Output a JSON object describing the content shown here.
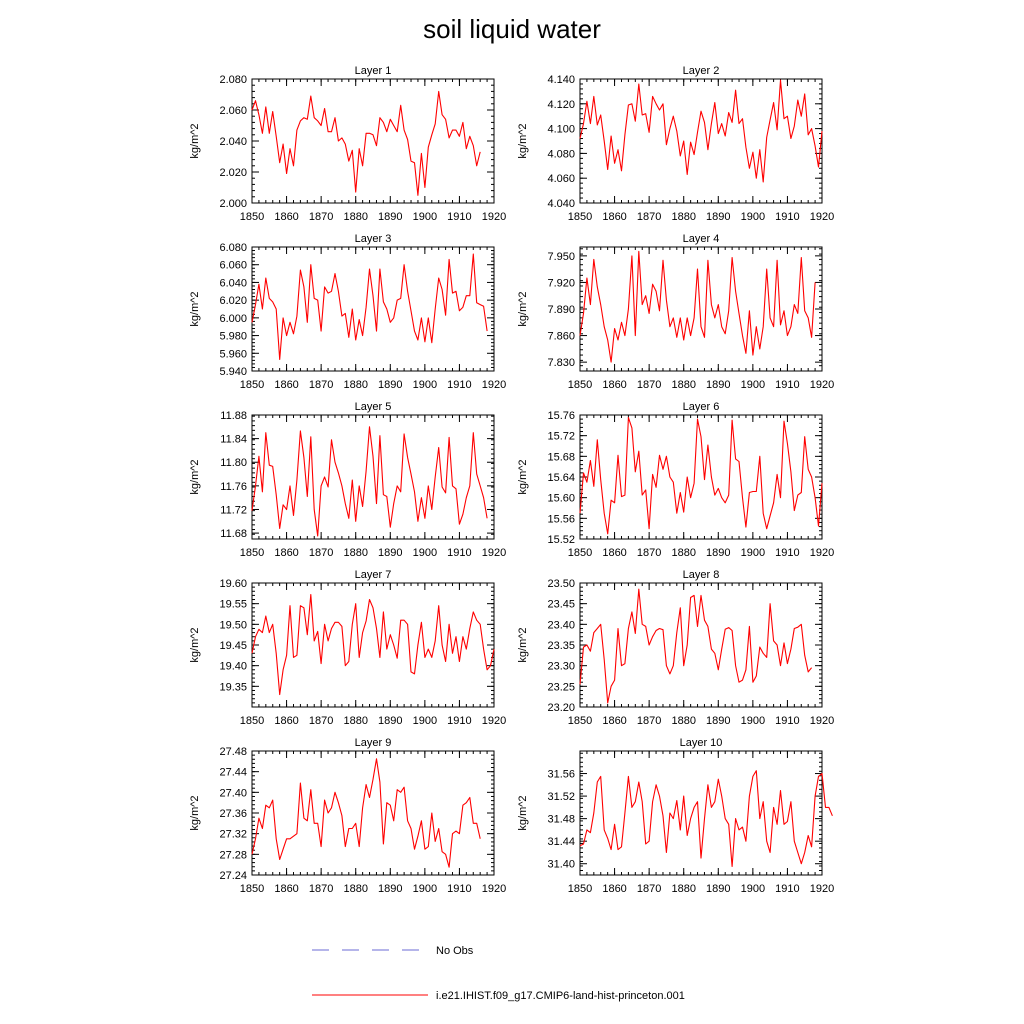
{
  "figure": {
    "title": "soil liquid water",
    "legend": {
      "placement": "bottom-center",
      "entries": [
        {
          "label": "No Obs",
          "color": "#6b6bd6",
          "dashed": true
        },
        {
          "label": "i.e21.IHIST.f09_g17.CMIP6-land-hist-princeton.001",
          "color": "#ff0000",
          "dashed": false
        }
      ]
    }
  },
  "chart_data": [
    {
      "type": "line",
      "title": "Layer 1",
      "ylabel": "kg/m^2",
      "xlim": [
        1850,
        1920
      ],
      "xticks": [
        "1850",
        "1860",
        "1870",
        "1880",
        "1890",
        "1900",
        "1910",
        "1920"
      ],
      "ylim": [
        2.0,
        2.08
      ],
      "yticks": [
        "2.000",
        "2.020",
        "2.040",
        "2.060",
        "2.080"
      ],
      "x_start": 1850,
      "x_step": 1,
      "series": [
        {
          "color": "#ff0000",
          "values": [
            2.06,
            2.066,
            2.057,
            2.045,
            2.062,
            2.045,
            2.059,
            2.043,
            2.026,
            2.038,
            2.019,
            2.035,
            2.024,
            2.047,
            2.053,
            2.055,
            2.054,
            2.069,
            2.055,
            2.053,
            2.05,
            2.061,
            2.046,
            2.046,
            2.055,
            2.04,
            2.042,
            2.038,
            2.027,
            2.034,
            2.007,
            2.035,
            2.024,
            2.045,
            2.045,
            2.044,
            2.037,
            2.055,
            2.052,
            2.046,
            2.054,
            2.05,
            2.046,
            2.063,
            2.047,
            2.041,
            2.027,
            2.026,
            2.005,
            2.032,
            2.01,
            2.036,
            2.044,
            2.051,
            2.072,
            2.057,
            2.054,
            2.042,
            2.047,
            2.047,
            2.043,
            2.052,
            2.035,
            2.043,
            2.037,
            2.024,
            2.033
          ]
        }
      ]
    },
    {
      "type": "line",
      "title": "Layer 2",
      "ylabel": "kg/m^2",
      "xlim": [
        1850,
        1920
      ],
      "xticks": [
        "1850",
        "1860",
        "1870",
        "1880",
        "1890",
        "1900",
        "1910",
        "1920"
      ],
      "ylim": [
        4.04,
        4.14
      ],
      "yticks": [
        "4.040",
        "4.060",
        "4.080",
        "4.100",
        "4.120",
        "4.140"
      ],
      "x_start": 1850,
      "x_step": 1,
      "series": [
        {
          "color": "#ff0000",
          "values": [
            4.092,
            4.104,
            4.122,
            4.104,
            4.126,
            4.103,
            4.111,
            4.09,
            4.067,
            4.094,
            4.072,
            4.083,
            4.066,
            4.095,
            4.119,
            4.12,
            4.106,
            4.136,
            4.111,
            4.112,
            4.097,
            4.126,
            4.12,
            4.115,
            4.12,
            4.087,
            4.1,
            4.11,
            4.098,
            4.078,
            4.09,
            4.063,
            4.089,
            4.079,
            4.097,
            4.114,
            4.105,
            4.083,
            4.104,
            4.121,
            4.096,
            4.104,
            4.094,
            4.113,
            4.105,
            4.131,
            4.104,
            4.108,
            4.085,
            4.068,
            4.081,
            4.06,
            4.083,
            4.057,
            4.093,
            4.107,
            4.121,
            4.099,
            4.139,
            4.108,
            4.11,
            4.092,
            4.102,
            4.123,
            4.11,
            4.128,
            4.095,
            4.1,
            4.086,
            4.069,
            4.098
          ]
        }
      ]
    },
    {
      "type": "line",
      "title": "Layer 3",
      "ylabel": "kg/m^2",
      "xlim": [
        1850,
        1920
      ],
      "xticks": [
        "1850",
        "1860",
        "1870",
        "1880",
        "1890",
        "1900",
        "1910",
        "1920"
      ],
      "ylim": [
        5.94,
        6.08
      ],
      "yticks": [
        "5.940",
        "5.960",
        "5.980",
        "6.000",
        "6.020",
        "6.040",
        "6.060",
        "6.080"
      ],
      "x_start": 1850,
      "x_step": 1,
      "series": [
        {
          "color": "#ff0000",
          "values": [
            5.995,
            6.015,
            6.038,
            6.01,
            6.045,
            6.022,
            6.018,
            6.01,
            5.953,
            6.0,
            5.98,
            5.995,
            5.982,
            6.002,
            6.054,
            6.035,
            5.995,
            6.06,
            6.022,
            6.02,
            5.985,
            6.035,
            6.028,
            6.03,
            6.05,
            6.03,
            6.002,
            6.005,
            5.978,
            6.01,
            5.975,
            5.998,
            5.98,
            6.012,
            6.055,
            6.025,
            5.985,
            6.055,
            6.018,
            6.01,
            5.995,
            6.0,
            6.02,
            6.022,
            6.06,
            6.03,
            6.008,
            5.985,
            5.975,
            6.0,
            5.973,
            6.0,
            5.972,
            6.01,
            6.045,
            6.032,
            6.003,
            6.066,
            6.028,
            6.03,
            6.008,
            6.012,
            6.025,
            6.025,
            6.072,
            6.017,
            6.015,
            6.013,
            5.985
          ]
        }
      ]
    },
    {
      "type": "line",
      "title": "Layer 4",
      "ylabel": "kg/m^2",
      "xlim": [
        1850,
        1920
      ],
      "xticks": [
        "1850",
        "1860",
        "1870",
        "1880",
        "1890",
        "1900",
        "1910",
        "1920"
      ],
      "ylim": [
        7.82,
        7.96
      ],
      "yticks": [
        "7.830",
        "7.860",
        "7.890",
        "7.920",
        "7.950"
      ],
      "x_start": 1850,
      "x_step": 1,
      "series": [
        {
          "color": "#ff0000",
          "values": [
            7.86,
            7.885,
            7.925,
            7.895,
            7.946,
            7.915,
            7.895,
            7.87,
            7.855,
            7.83,
            7.868,
            7.855,
            7.875,
            7.86,
            7.89,
            7.95,
            7.86,
            7.955,
            7.895,
            7.905,
            7.885,
            7.918,
            7.91,
            7.888,
            7.945,
            7.9,
            7.87,
            7.88,
            7.858,
            7.88,
            7.855,
            7.88,
            7.86,
            7.88,
            7.935,
            7.87,
            7.858,
            7.945,
            7.895,
            7.88,
            7.895,
            7.87,
            7.862,
            7.888,
            7.948,
            7.91,
            7.885,
            7.86,
            7.84,
            7.888,
            7.838,
            7.87,
            7.845,
            7.87,
            7.935,
            7.88,
            7.87,
            7.945,
            7.872,
            7.888,
            7.86,
            7.87,
            7.895,
            7.885,
            7.948,
            7.888,
            7.88,
            7.858,
            7.92
          ]
        }
      ]
    },
    {
      "type": "line",
      "title": "Layer 5",
      "ylabel": "kg/m^2",
      "xlim": [
        1850,
        1920
      ],
      "xticks": [
        "1850",
        "1860",
        "1870",
        "1880",
        "1890",
        "1900",
        "1910",
        "1920"
      ],
      "ylim": [
        11.67,
        11.88
      ],
      "yticks": [
        "11.68",
        "11.72",
        "11.76",
        "11.80",
        "11.84",
        "11.88"
      ],
      "x_start": 1850,
      "x_step": 1,
      "series": [
        {
          "color": "#ff0000",
          "values": [
            11.718,
            11.76,
            11.81,
            11.75,
            11.85,
            11.795,
            11.793,
            11.745,
            11.688,
            11.728,
            11.72,
            11.76,
            11.71,
            11.77,
            11.853,
            11.808,
            11.742,
            11.843,
            11.72,
            11.675,
            11.76,
            11.775,
            11.758,
            11.838,
            11.8,
            11.782,
            11.76,
            11.73,
            11.705,
            11.77,
            11.7,
            11.76,
            11.725,
            11.785,
            11.86,
            11.81,
            11.73,
            11.845,
            11.745,
            11.742,
            11.69,
            11.73,
            11.76,
            11.75,
            11.848,
            11.808,
            11.78,
            11.75,
            11.7,
            11.74,
            11.705,
            11.76,
            11.72,
            11.775,
            11.825,
            11.758,
            11.748,
            11.842,
            11.76,
            11.755,
            11.695,
            11.712,
            11.74,
            11.76,
            11.85,
            11.78,
            11.76,
            11.74,
            11.705
          ]
        }
      ]
    },
    {
      "type": "line",
      "title": "Layer 6",
      "ylabel": "kg/m^2",
      "xlim": [
        1850,
        1920
      ],
      "xticks": [
        "1850",
        "1860",
        "1870",
        "1880",
        "1890",
        "1900",
        "1910",
        "1920"
      ],
      "ylim": [
        15.52,
        15.76
      ],
      "yticks": [
        "15.52",
        "15.56",
        "15.60",
        "15.64",
        "15.68",
        "15.72",
        "15.76"
      ],
      "x_start": 1850,
      "x_step": 1,
      "series": [
        {
          "color": "#ff0000",
          "values": [
            15.57,
            15.648,
            15.63,
            15.672,
            15.622,
            15.712,
            15.635,
            15.57,
            15.53,
            15.595,
            15.59,
            15.682,
            15.602,
            15.605,
            15.755,
            15.735,
            15.65,
            15.69,
            15.605,
            15.615,
            15.54,
            15.645,
            15.62,
            15.682,
            15.655,
            15.68,
            15.64,
            15.63,
            15.57,
            15.61,
            15.572,
            15.64,
            15.6,
            15.628,
            15.752,
            15.718,
            15.635,
            15.702,
            15.64,
            15.605,
            15.618,
            15.6,
            15.59,
            15.605,
            15.75,
            15.675,
            15.67,
            15.6,
            15.543,
            15.61,
            15.612,
            15.612,
            15.68,
            15.57,
            15.54,
            15.565,
            15.59,
            15.645,
            15.6,
            15.748,
            15.705,
            15.65,
            15.575,
            15.605,
            15.61,
            15.718,
            15.655,
            15.64,
            15.6,
            15.545,
            15.628
          ]
        }
      ]
    },
    {
      "type": "line",
      "title": "Layer 7",
      "ylabel": "kg/m^2",
      "xlim": [
        1850,
        1920
      ],
      "xticks": [
        "1850",
        "1860",
        "1870",
        "1880",
        "1890",
        "1900",
        "1910",
        "1920"
      ],
      "ylim": [
        19.3,
        19.6
      ],
      "yticks": [
        "19.35",
        "19.40",
        "19.45",
        "19.50",
        "19.55",
        "19.60"
      ],
      "x_start": 1850,
      "x_step": 1,
      "series": [
        {
          "color": "#ff0000",
          "values": [
            19.43,
            19.47,
            19.488,
            19.48,
            19.52,
            19.48,
            19.5,
            19.43,
            19.33,
            19.39,
            19.425,
            19.545,
            19.42,
            19.425,
            19.545,
            19.54,
            19.475,
            19.572,
            19.46,
            19.483,
            19.405,
            19.5,
            19.46,
            19.49,
            19.505,
            19.505,
            19.495,
            19.4,
            19.41,
            19.5,
            19.55,
            19.42,
            19.48,
            19.508,
            19.56,
            19.54,
            19.49,
            19.42,
            19.53,
            19.44,
            19.475,
            19.45,
            19.418,
            19.51,
            19.51,
            19.5,
            19.385,
            19.38,
            19.45,
            19.505,
            19.42,
            19.44,
            19.42,
            19.46,
            19.545,
            19.45,
            19.41,
            19.5,
            19.43,
            19.47,
            19.41,
            19.47,
            19.44,
            19.49,
            19.53,
            19.51,
            19.5,
            19.44,
            19.39,
            19.4,
            19.44
          ]
        }
      ]
    },
    {
      "type": "line",
      "title": "Layer 8",
      "ylabel": "kg/m^2",
      "xlim": [
        1850,
        1920
      ],
      "xticks": [
        "1850",
        "1860",
        "1870",
        "1880",
        "1890",
        "1900",
        "1910",
        "1920"
      ],
      "ylim": [
        23.2,
        23.5
      ],
      "yticks": [
        "23.20",
        "23.25",
        "23.30",
        "23.35",
        "23.40",
        "23.45",
        "23.50"
      ],
      "x_start": 1850,
      "x_step": 1,
      "series": [
        {
          "color": "#ff0000",
          "values": [
            23.255,
            23.345,
            23.35,
            23.335,
            23.38,
            23.39,
            23.4,
            23.315,
            23.21,
            23.25,
            23.265,
            23.39,
            23.3,
            23.305,
            23.39,
            23.43,
            23.378,
            23.485,
            23.4,
            23.395,
            23.35,
            23.37,
            23.385,
            23.39,
            23.387,
            23.3,
            23.28,
            23.3,
            23.38,
            23.44,
            23.3,
            23.35,
            23.465,
            23.47,
            23.395,
            23.47,
            23.41,
            23.395,
            23.34,
            23.33,
            23.29,
            23.34,
            23.388,
            23.392,
            23.385,
            23.3,
            23.26,
            23.265,
            23.29,
            23.395,
            23.26,
            23.275,
            23.345,
            23.33,
            23.32,
            23.45,
            23.36,
            23.35,
            23.3,
            23.355,
            23.305,
            23.34,
            23.39,
            23.393,
            23.4,
            23.325,
            23.285,
            23.295
          ]
        }
      ]
    },
    {
      "type": "line",
      "title": "Layer 9",
      "ylabel": "kg/m^2",
      "xlim": [
        1850,
        1920
      ],
      "xticks": [
        "1850",
        "1860",
        "1870",
        "1880",
        "1890",
        "1900",
        "1910",
        "1920"
      ],
      "ylim": [
        27.24,
        27.48
      ],
      "yticks": [
        "27.24",
        "27.28",
        "27.32",
        "27.36",
        "27.40",
        "27.44",
        "27.48"
      ],
      "x_start": 1850,
      "x_step": 1,
      "series": [
        {
          "color": "#ff0000",
          "values": [
            27.28,
            27.31,
            27.35,
            27.33,
            27.375,
            27.37,
            27.385,
            27.31,
            27.27,
            27.29,
            27.31,
            27.31,
            27.315,
            27.32,
            27.418,
            27.35,
            27.345,
            27.405,
            27.34,
            27.34,
            27.295,
            27.385,
            27.36,
            27.37,
            27.4,
            27.38,
            27.355,
            27.295,
            27.33,
            27.33,
            27.34,
            27.295,
            27.37,
            27.415,
            27.39,
            27.425,
            27.465,
            27.42,
            27.3,
            27.38,
            27.375,
            27.345,
            27.405,
            27.4,
            27.41,
            27.345,
            27.33,
            27.29,
            27.315,
            27.345,
            27.29,
            27.295,
            27.36,
            27.305,
            27.33,
            27.285,
            27.28,
            27.255,
            27.32,
            27.325,
            27.32,
            27.375,
            27.38,
            27.39,
            27.34,
            27.34,
            27.31
          ]
        }
      ]
    },
    {
      "type": "line",
      "title": "Layer 10",
      "ylabel": "kg/m^2",
      "xlim": [
        1850,
        1920
      ],
      "xticks": [
        "1850",
        "1860",
        "1870",
        "1880",
        "1890",
        "1900",
        "1910",
        "1920"
      ],
      "ylim": [
        31.38,
        31.6
      ],
      "yticks": [
        "31.40",
        "31.44",
        "31.48",
        "31.52",
        "31.56"
      ],
      "x_start": 1850,
      "x_step": 1,
      "series": [
        {
          "color": "#ff0000",
          "values": [
            31.432,
            31.435,
            31.46,
            31.455,
            31.49,
            31.545,
            31.555,
            31.46,
            31.445,
            31.425,
            31.47,
            31.425,
            31.43,
            31.49,
            31.555,
            31.5,
            31.51,
            31.545,
            31.51,
            31.435,
            31.44,
            31.51,
            31.54,
            31.52,
            31.485,
            31.42,
            31.49,
            31.48,
            31.512,
            31.46,
            31.52,
            31.45,
            31.48,
            31.5,
            31.51,
            31.41,
            31.48,
            31.54,
            31.5,
            31.51,
            31.55,
            31.52,
            31.48,
            31.47,
            31.395,
            31.48,
            31.46,
            31.465,
            31.44,
            31.52,
            31.555,
            31.565,
            31.48,
            31.51,
            31.44,
            31.42,
            31.5,
            31.47,
            31.53,
            31.47,
            31.475,
            31.51,
            31.44,
            31.42,
            31.4,
            31.42,
            31.45,
            31.43,
            31.52,
            31.555,
            31.56,
            31.5,
            31.5,
            31.485
          ]
        }
      ]
    }
  ]
}
